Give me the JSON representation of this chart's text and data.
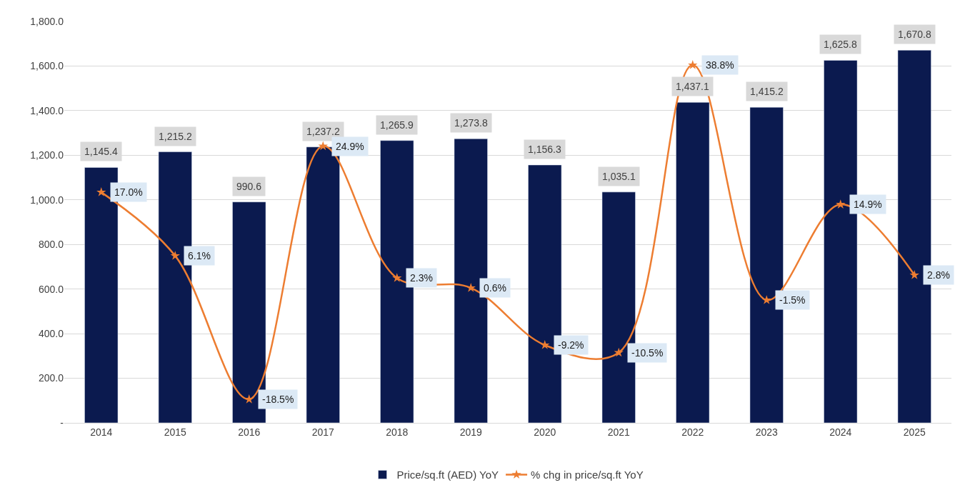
{
  "chart_data": {
    "type": "bar",
    "categories": [
      "2014",
      "2015",
      "2016",
      "2017",
      "2018",
      "2019",
      "2020",
      "2021",
      "2022",
      "2023",
      "2024",
      "2025"
    ],
    "series": [
      {
        "name": "Price/sq.ft (AED) YoY",
        "color": "#0b1a4f",
        "values": [
          1145.4,
          1215.2,
          990.6,
          1237.2,
          1265.9,
          1273.8,
          1156.3,
          1035.1,
          1437.1,
          1415.2,
          1625.8,
          1670.8
        ],
        "value_labels": [
          "1,145.4",
          "1,215.2",
          "990.6",
          "1,237.2",
          "1,265.9",
          "1,273.8",
          "1,156.3",
          "1,035.1",
          "1,437.1",
          "1,415.2",
          "1,625.8",
          "1,670.8"
        ]
      },
      {
        "name": "% chg in price/sq.ft YoY",
        "type": "line",
        "axis": "y2",
        "color": "#ed7d31",
        "marker": "star",
        "values": [
          17.0,
          6.1,
          -18.5,
          24.9,
          2.3,
          0.6,
          -9.2,
          -10.5,
          38.8,
          -1.5,
          14.9,
          2.8
        ],
        "value_labels": [
          "17.0%",
          "6.1%",
          "-18.5%",
          "24.9%",
          "2.3%",
          "0.6%",
          "-9.2%",
          "-10.5%",
          "38.8%",
          "-1.5%",
          "14.9%",
          "2.8%"
        ]
      }
    ],
    "ylim": [
      0,
      1800
    ],
    "yticks": [
      {
        "value": 0,
        "label": "-"
      },
      {
        "value": 200,
        "label": "200.0"
      },
      {
        "value": 400,
        "label": "400.0"
      },
      {
        "value": 600,
        "label": "600.0"
      },
      {
        "value": 800,
        "label": "800.0"
      },
      {
        "value": 1000,
        "label": "1,000.0"
      },
      {
        "value": 1200,
        "label": "1,200.0"
      },
      {
        "value": 1400,
        "label": "1,400.0"
      },
      {
        "value": 1600,
        "label": "1,600.0"
      },
      {
        "value": 1800,
        "label": "1,800.0"
      }
    ],
    "grid": "y",
    "legend": "bottom",
    "line_style": "solid"
  }
}
